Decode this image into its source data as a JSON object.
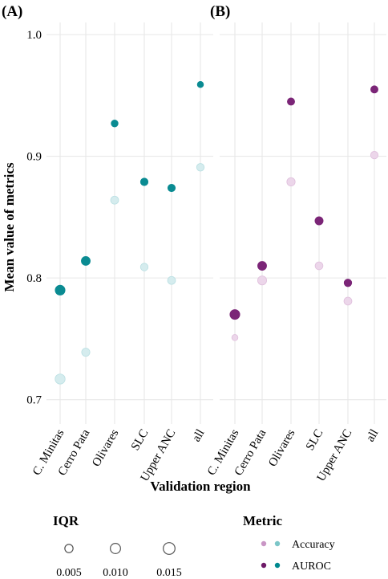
{
  "panel_labels": [
    "(A)",
    "(B)"
  ],
  "axes": {
    "ylabel": "Mean value of metrics",
    "xlabel": "Validation region"
  },
  "legend_size": {
    "title": "IQR",
    "entries": [
      {
        "label": "0.005",
        "iqr": 0.005
      },
      {
        "label": "0.010",
        "iqr": 0.01
      },
      {
        "label": "0.015",
        "iqr": 0.015
      }
    ]
  },
  "legend_metric": {
    "title": "Metric",
    "entries": [
      {
        "label": "Accuracy",
        "colors": [
          "#c996c5",
          "#7cc6c8"
        ]
      },
      {
        "label": "AUROC",
        "colors": [
          "#6e1a68",
          "#00898f"
        ]
      }
    ]
  },
  "chart_data": [
    {
      "type": "scatter",
      "panel": "(A)",
      "categories": [
        "C. Minitas",
        "Cerro Pata",
        "Olivares",
        "SLC",
        "Upper ANC",
        "all"
      ],
      "ylim": [
        0.68,
        1.01
      ],
      "yticks": [
        0.7,
        0.8,
        0.9,
        1.0
      ],
      "ytick_labels": [
        "0.7",
        "0.8",
        "0.9",
        "1.0"
      ],
      "grid": true,
      "series": [
        {
          "name": "Accuracy",
          "color": "#d5ecee",
          "stroke": "#b9dfe2",
          "values": [
            0.717,
            0.739,
            0.864,
            0.809,
            0.798,
            0.891
          ],
          "iqr": [
            0.0145,
            0.0088,
            0.0082,
            0.0072,
            0.008,
            0.0072
          ]
        },
        {
          "name": "AUROC",
          "color": "#0a8b92",
          "stroke": "#0a8b92",
          "values": [
            0.79,
            0.814,
            0.927,
            0.879,
            0.874,
            0.959
          ],
          "iqr": [
            0.014,
            0.0108,
            0.0055,
            0.007,
            0.007,
            0.004
          ]
        }
      ]
    },
    {
      "type": "scatter",
      "panel": "(B)",
      "categories": [
        "C. Minitas",
        "Cerro Pata",
        "Olivares",
        "SLC",
        "Upper ANC",
        "all"
      ],
      "ylim": [
        0.68,
        1.01
      ],
      "yticks": [
        0.7,
        0.8,
        0.9,
        1.0
      ],
      "grid": true,
      "series": [
        {
          "name": "Accuracy",
          "color": "#ecd6ea",
          "stroke": "#dfbfdc",
          "values": [
            0.751,
            0.798,
            0.879,
            0.81,
            0.781,
            0.901
          ],
          "iqr": [
            0.004,
            0.011,
            0.009,
            0.0078,
            0.008,
            0.007
          ]
        },
        {
          "name": "AUROC",
          "color": "#7b2577",
          "stroke": "#7b2577",
          "values": [
            0.77,
            0.81,
            0.945,
            0.847,
            0.796,
            0.955
          ],
          "iqr": [
            0.014,
            0.0108,
            0.0064,
            0.0086,
            0.0072,
            0.0064
          ]
        }
      ]
    }
  ]
}
